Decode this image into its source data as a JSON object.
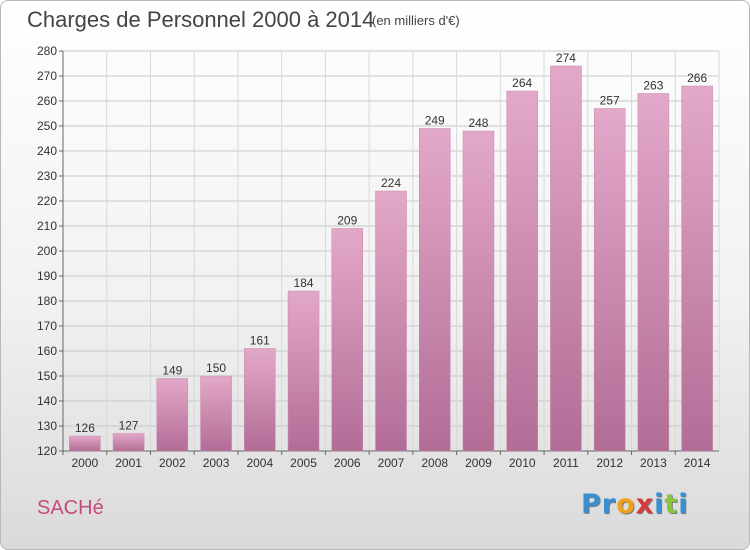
{
  "header": {
    "title": "Charges de Personnel 2000 à 2014",
    "subtitle": "(en milliers d'€)"
  },
  "footer": {
    "location": "SACHé",
    "logo_letters": [
      "P",
      "r",
      "o",
      "x",
      "i",
      "t",
      "i"
    ],
    "logo_colors": [
      "#3a8fd0",
      "#3a8fd0",
      "#f0a21c",
      "#d83a3a",
      "#3a8fd0",
      "#8cc63f",
      "#3a8fd0"
    ]
  },
  "chart_data": {
    "type": "bar",
    "title": "Charges de Personnel 2000 à 2014",
    "subtitle": "(en milliers d'€)",
    "categories": [
      "2000",
      "2001",
      "2002",
      "2003",
      "2004",
      "2005",
      "2006",
      "2007",
      "2008",
      "2009",
      "2010",
      "2011",
      "2012",
      "2013",
      "2014"
    ],
    "values": [
      126,
      127,
      149,
      150,
      161,
      184,
      209,
      224,
      249,
      248,
      264,
      274,
      257,
      263,
      266
    ],
    "ylim": [
      120,
      280
    ],
    "yticks": [
      120,
      130,
      140,
      150,
      160,
      170,
      180,
      190,
      200,
      210,
      220,
      230,
      240,
      250,
      260,
      270,
      280
    ],
    "grid": true,
    "bar_color": "#d48fb5",
    "bar_color_top": "#e3a8c9",
    "bar_color_bottom": "#b26d96"
  }
}
